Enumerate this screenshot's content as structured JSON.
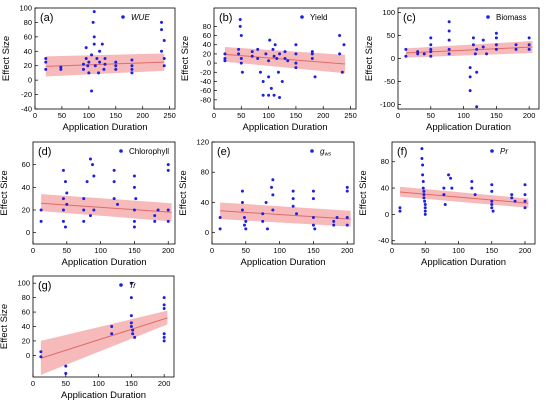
{
  "figure": {
    "point_color": "#1f1fe0",
    "band_color": "#f4a3a3",
    "line_color": "#e06b6b"
  },
  "chart_data": [
    {
      "id": "a",
      "type": "scatter",
      "panel_label": "(a)",
      "legend": "WUE",
      "legend_italic": true,
      "xlabel": "Application Duration",
      "ylabel": "Effect Size",
      "xlim": [
        0,
        260
      ],
      "ylim": [
        -40,
        100
      ],
      "xticks": [
        0,
        50,
        100,
        150,
        200,
        250
      ],
      "yticks": [
        -40,
        -20,
        0,
        20,
        40,
        60,
        80,
        100
      ],
      "xtick_labels": [
        "0",
        "50",
        "100",
        "150",
        "200",
        "250"
      ],
      "ytick_labels": [
        "-40",
        "-20",
        "0",
        "20",
        "40",
        "60",
        "80",
        "100"
      ],
      "fit": {
        "x": [
          20,
          240
        ],
        "y": [
          19,
          25
        ],
        "lower": [
          5,
          13
        ],
        "upper": [
          33,
          37
        ]
      },
      "points": [
        [
          20,
          25
        ],
        [
          20,
          15
        ],
        [
          20,
          30
        ],
        [
          48,
          18
        ],
        [
          48,
          15
        ],
        [
          90,
          15
        ],
        [
          90,
          22
        ],
        [
          95,
          30
        ],
        [
          95,
          45
        ],
        [
          98,
          20
        ],
        [
          100,
          25
        ],
        [
          100,
          10
        ],
        [
          105,
          35
        ],
        [
          105,
          -15
        ],
        [
          108,
          80
        ],
        [
          110,
          95
        ],
        [
          110,
          60
        ],
        [
          110,
          50
        ],
        [
          112,
          20
        ],
        [
          115,
          30
        ],
        [
          118,
          10
        ],
        [
          120,
          25
        ],
        [
          120,
          40
        ],
        [
          125,
          50
        ],
        [
          128,
          15
        ],
        [
          130,
          22
        ],
        [
          130,
          30
        ],
        [
          150,
          20
        ],
        [
          150,
          15
        ],
        [
          150,
          25
        ],
        [
          180,
          15
        ],
        [
          180,
          20
        ],
        [
          180,
          28
        ],
        [
          180,
          10
        ],
        [
          235,
          40
        ],
        [
          235,
          80
        ],
        [
          235,
          70
        ],
        [
          240,
          55
        ],
        [
          240,
          30
        ],
        [
          240,
          20
        ]
      ]
    },
    {
      "id": "b",
      "type": "scatter",
      "panel_label": "(b)",
      "legend": "Yield",
      "legend_italic": false,
      "xlabel": "Application Duration",
      "ylabel": "Effect Size",
      "xlim": [
        0,
        260
      ],
      "ylim": [
        -100,
        120
      ],
      "xticks": [
        0,
        50,
        100,
        150,
        200,
        250
      ],
      "yticks": [
        -80,
        -60,
        -40,
        -20,
        0,
        20,
        40,
        60,
        80
      ],
      "xtick_labels": [
        "0",
        "50",
        "100",
        "150",
        "200",
        "250"
      ],
      "ytick_labels": [
        "-80",
        "-60",
        "-40",
        "-20",
        "0",
        "20",
        "40",
        "60",
        "80"
      ],
      "fit": {
        "x": [
          20,
          240
        ],
        "y": [
          19,
          -2
        ],
        "lower": [
          3,
          -22
        ],
        "upper": [
          35,
          18
        ]
      },
      "points": [
        [
          20,
          10
        ],
        [
          20,
          20
        ],
        [
          20,
          5
        ],
        [
          45,
          30
        ],
        [
          45,
          20
        ],
        [
          48,
          95
        ],
        [
          48,
          80
        ],
        [
          50,
          60
        ],
        [
          50,
          10
        ],
        [
          50,
          0
        ],
        [
          52,
          -20
        ],
        [
          70,
          15
        ],
        [
          70,
          25
        ],
        [
          80,
          10
        ],
        [
          80,
          30
        ],
        [
          85,
          -20
        ],
        [
          90,
          -70
        ],
        [
          90,
          -40
        ],
        [
          95,
          20
        ],
        [
          100,
          -70
        ],
        [
          100,
          -30
        ],
        [
          100,
          5
        ],
        [
          102,
          50
        ],
        [
          105,
          -55
        ],
        [
          108,
          30
        ],
        [
          110,
          15
        ],
        [
          110,
          -70
        ],
        [
          112,
          40
        ],
        [
          115,
          10
        ],
        [
          118,
          -20
        ],
        [
          120,
          -75
        ],
        [
          120,
          20
        ],
        [
          125,
          -40
        ],
        [
          130,
          10
        ],
        [
          130,
          25
        ],
        [
          135,
          5
        ],
        [
          150,
          20
        ],
        [
          150,
          -10
        ],
        [
          150,
          0
        ],
        [
          150,
          40
        ],
        [
          180,
          20
        ],
        [
          180,
          10
        ],
        [
          180,
          25
        ],
        [
          185,
          -30
        ],
        [
          230,
          60
        ],
        [
          230,
          20
        ],
        [
          235,
          -20
        ],
        [
          238,
          40
        ]
      ]
    },
    {
      "id": "c",
      "type": "scatter",
      "panel_label": "(c)",
      "legend": "Biomass",
      "legend_italic": false,
      "xlabel": "Application Duration",
      "ylabel": "Effect Size",
      "xlim": [
        0,
        215
      ],
      "ylim": [
        -110,
        110
      ],
      "xticks": [
        0,
        50,
        100,
        150,
        200
      ],
      "yticks": [
        -100,
        -50,
        0,
        50,
        100
      ],
      "xtick_labels": [
        "0",
        "50",
        "100",
        "150",
        "200"
      ],
      "ytick_labels": [
        "-100",
        "-50",
        "0",
        "50",
        "100"
      ],
      "fit": {
        "x": [
          12,
          205
        ],
        "y": [
          12,
          25
        ],
        "lower": [
          2,
          12
        ],
        "upper": [
          22,
          38
        ]
      },
      "points": [
        [
          12,
          20
        ],
        [
          12,
          5
        ],
        [
          30,
          15
        ],
        [
          30,
          10
        ],
        [
          40,
          10
        ],
        [
          50,
          30
        ],
        [
          50,
          20
        ],
        [
          50,
          45
        ],
        [
          50,
          15
        ],
        [
          50,
          5
        ],
        [
          78,
          80
        ],
        [
          78,
          60
        ],
        [
          78,
          40
        ],
        [
          78,
          20
        ],
        [
          78,
          10
        ],
        [
          110,
          -70
        ],
        [
          110,
          -40
        ],
        [
          110,
          -20
        ],
        [
          115,
          45
        ],
        [
          115,
          30
        ],
        [
          118,
          10
        ],
        [
          120,
          -30
        ],
        [
          120,
          -105
        ],
        [
          120,
          20
        ],
        [
          130,
          40
        ],
        [
          130,
          25
        ],
        [
          135,
          10
        ],
        [
          150,
          45
        ],
        [
          150,
          55
        ],
        [
          150,
          30
        ],
        [
          150,
          20
        ],
        [
          180,
          30
        ],
        [
          180,
          20
        ],
        [
          200,
          45
        ],
        [
          200,
          30
        ],
        [
          200,
          20
        ]
      ]
    },
    {
      "id": "d",
      "type": "scatter",
      "panel_label": "(d)",
      "legend": "Chlorophyll",
      "legend_italic": false,
      "xlabel": "Application Duration",
      "ylabel": "Effect Size",
      "xlim": [
        0,
        210
      ],
      "ylim": [
        -10,
        80
      ],
      "xticks": [
        0,
        50,
        100,
        150,
        200
      ],
      "yticks": [
        0,
        20,
        40,
        60
      ],
      "xtick_labels": [
        "0",
        "50",
        "100",
        "150",
        "200"
      ],
      "ytick_labels": [
        "0",
        "20",
        "40",
        "60"
      ],
      "fit": {
        "x": [
          12,
          205
        ],
        "y": [
          26,
          18
        ],
        "lower": [
          19,
          10
        ],
        "upper": [
          34,
          26
        ]
      },
      "points": [
        [
          12,
          20
        ],
        [
          12,
          10
        ],
        [
          45,
          55
        ],
        [
          45,
          30
        ],
        [
          45,
          20
        ],
        [
          45,
          10
        ],
        [
          48,
          45
        ],
        [
          48,
          5
        ],
        [
          50,
          35
        ],
        [
          50,
          25
        ],
        [
          75,
          30
        ],
        [
          75,
          20
        ],
        [
          75,
          10
        ],
        [
          80,
          45
        ],
        [
          85,
          15
        ],
        [
          85,
          65
        ],
        [
          88,
          60
        ],
        [
          90,
          50
        ],
        [
          90,
          20
        ],
        [
          120,
          55
        ],
        [
          120,
          45
        ],
        [
          120,
          30
        ],
        [
          125,
          25
        ],
        [
          150,
          50
        ],
        [
          150,
          40
        ],
        [
          150,
          20
        ],
        [
          150,
          10
        ],
        [
          150,
          5
        ],
        [
          152,
          30
        ],
        [
          180,
          15
        ],
        [
          180,
          10
        ],
        [
          185,
          20
        ],
        [
          200,
          60
        ],
        [
          200,
          55
        ],
        [
          200,
          20
        ],
        [
          200,
          10
        ]
      ]
    },
    {
      "id": "e",
      "type": "scatter",
      "panel_label": "(e)",
      "legend": "gws",
      "legend_italic": true,
      "xlabel": "Application Duration",
      "ylabel": "Effect Size",
      "xlim": [
        0,
        210
      ],
      "ylim": [
        -15,
        120
      ],
      "xticks": [
        0,
        50,
        100,
        150,
        200
      ],
      "yticks": [
        0,
        40,
        80,
        120
      ],
      "xtick_labels": [
        "0",
        "50",
        "100",
        "150",
        "200"
      ],
      "ytick_labels": [
        "0",
        "40",
        "80",
        "120"
      ],
      "fit": {
        "x": [
          12,
          205
        ],
        "y": [
          29,
          18
        ],
        "lower": [
          18,
          8
        ],
        "upper": [
          40,
          29
        ]
      },
      "points": [
        [
          12,
          20
        ],
        [
          12,
          5
        ],
        [
          45,
          55
        ],
        [
          45,
          40
        ],
        [
          45,
          30
        ],
        [
          48,
          20
        ],
        [
          48,
          10
        ],
        [
          50,
          15
        ],
        [
          50,
          5
        ],
        [
          75,
          25
        ],
        [
          75,
          15
        ],
        [
          80,
          40
        ],
        [
          82,
          5
        ],
        [
          88,
          60
        ],
        [
          90,
          70
        ],
        [
          90,
          50
        ],
        [
          90,
          30
        ],
        [
          120,
          55
        ],
        [
          120,
          45
        ],
        [
          120,
          35
        ],
        [
          125,
          25
        ],
        [
          150,
          55
        ],
        [
          150,
          45
        ],
        [
          150,
          20
        ],
        [
          150,
          10
        ],
        [
          152,
          5
        ],
        [
          180,
          15
        ],
        [
          180,
          10
        ],
        [
          185,
          20
        ],
        [
          200,
          60
        ],
        [
          200,
          55
        ],
        [
          200,
          20
        ],
        [
          200,
          10
        ]
      ]
    },
    {
      "id": "f",
      "type": "scatter",
      "panel_label": "(f)",
      "legend": "Pr",
      "legend_italic": true,
      "xlabel": "Application Duration",
      "ylabel": "Effect Size",
      "xlim": [
        0,
        215
      ],
      "ylim": [
        -45,
        110
      ],
      "xticks": [
        0,
        50,
        100,
        150,
        200
      ],
      "yticks": [
        -40,
        0,
        40,
        80
      ],
      "xtick_labels": [
        "0",
        "50",
        "100",
        "150",
        "200"
      ],
      "ytick_labels": [
        "-40",
        "0",
        "40",
        "80"
      ],
      "fit": {
        "x": [
          12,
          205
        ],
        "y": [
          34,
          17
        ],
        "lower": [
          27,
          10
        ],
        "upper": [
          42,
          24
        ]
      },
      "points": [
        [
          12,
          10
        ],
        [
          12,
          5
        ],
        [
          45,
          100
        ],
        [
          45,
          85
        ],
        [
          46,
          75
        ],
        [
          46,
          60
        ],
        [
          47,
          50
        ],
        [
          47,
          40
        ],
        [
          48,
          35
        ],
        [
          48,
          30
        ],
        [
          48,
          25
        ],
        [
          49,
          20
        ],
        [
          50,
          15
        ],
        [
          50,
          10
        ],
        [
          50,
          5
        ],
        [
          50,
          0
        ],
        [
          78,
          40
        ],
        [
          78,
          30
        ],
        [
          80,
          15
        ],
        [
          85,
          60
        ],
        [
          88,
          55
        ],
        [
          90,
          40
        ],
        [
          120,
          50
        ],
        [
          120,
          40
        ],
        [
          125,
          30
        ],
        [
          150,
          45
        ],
        [
          150,
          35
        ],
        [
          150,
          20
        ],
        [
          150,
          15
        ],
        [
          150,
          10
        ],
        [
          152,
          5
        ],
        [
          180,
          30
        ],
        [
          180,
          25
        ],
        [
          185,
          20
        ],
        [
          200,
          45
        ],
        [
          200,
          30
        ],
        [
          200,
          20
        ],
        [
          200,
          10
        ]
      ]
    },
    {
      "id": "g",
      "type": "scatter",
      "panel_label": "(g)",
      "legend": "Tr",
      "legend_italic": true,
      "xlabel": "Application Duration",
      "ylabel": "Effect Size",
      "xlim": [
        0,
        215
      ],
      "ylim": [
        -30,
        110
      ],
      "xticks": [
        0,
        50,
        100,
        150,
        200
      ],
      "yticks": [
        0,
        20,
        40,
        60,
        80,
        100
      ],
      "xtick_labels": [
        "0",
        "50",
        "100",
        "150",
        "200"
      ],
      "ytick_labels": [
        "0",
        "20",
        "40",
        "60",
        "80",
        "100"
      ],
      "fit": {
        "x": [
          12,
          205
        ],
        "y": [
          -4,
          52
        ],
        "lower": [
          -27,
          43
        ],
        "upper": [
          20,
          62
        ]
      },
      "points": [
        [
          12,
          5
        ],
        [
          12,
          -2
        ],
        [
          50,
          -15
        ],
        [
          50,
          -25
        ],
        [
          120,
          40
        ],
        [
          120,
          30
        ],
        [
          150,
          100
        ],
        [
          150,
          80
        ],
        [
          150,
          55
        ],
        [
          150,
          45
        ],
        [
          150,
          40
        ],
        [
          152,
          35
        ],
        [
          152,
          30
        ],
        [
          155,
          25
        ],
        [
          200,
          80
        ],
        [
          200,
          70
        ],
        [
          200,
          65
        ],
        [
          200,
          30
        ],
        [
          200,
          25
        ],
        [
          200,
          20
        ]
      ]
    }
  ]
}
